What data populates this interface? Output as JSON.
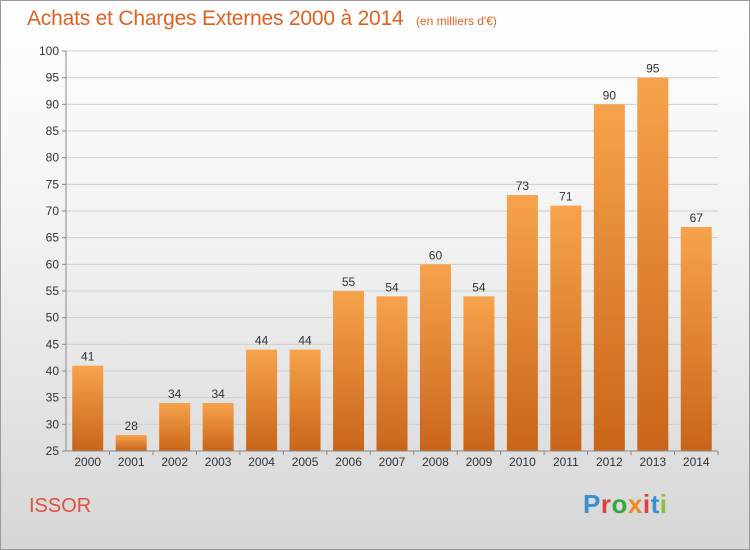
{
  "title": "Achats et Charges Externes 2000 à 2014",
  "unit": "(en milliers d'€)",
  "commune": "ISSOR",
  "logo": "Proxiti",
  "colors": {
    "bar_light": "#f7a34c",
    "bar_dark": "#c9651a",
    "title": "#e06020",
    "grid": "#cfcfcf",
    "axis": "#888888"
  },
  "chart_data": {
    "type": "bar",
    "title": "Achats et Charges Externes 2000 à 2014",
    "subtitle": "(en milliers d'€)",
    "categories": [
      "2000",
      "2001",
      "2002",
      "2003",
      "2004",
      "2005",
      "2006",
      "2007",
      "2008",
      "2009",
      "2010",
      "2011",
      "2012",
      "2013",
      "2014"
    ],
    "values": [
      41,
      28,
      34,
      34,
      44,
      44,
      55,
      54,
      60,
      54,
      73,
      71,
      90,
      95,
      67
    ],
    "ylim": [
      25,
      100
    ],
    "yticks": [
      25,
      30,
      35,
      40,
      45,
      50,
      55,
      60,
      65,
      70,
      75,
      80,
      85,
      90,
      95,
      100
    ],
    "xlabel": "",
    "ylabel": "",
    "grid": true,
    "legend": "none"
  }
}
